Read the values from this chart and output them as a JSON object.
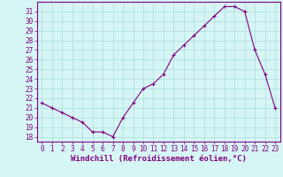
{
  "x": [
    0,
    1,
    2,
    3,
    4,
    5,
    6,
    7,
    8,
    9,
    10,
    11,
    12,
    13,
    14,
    15,
    16,
    17,
    18,
    19,
    20,
    21,
    22,
    23
  ],
  "y": [
    21.5,
    21.0,
    20.5,
    20.0,
    19.5,
    18.5,
    18.5,
    18.0,
    20.0,
    21.5,
    23.0,
    23.5,
    24.5,
    26.5,
    27.5,
    28.5,
    29.5,
    30.5,
    31.5,
    31.5,
    31.0,
    27.0,
    24.5,
    21.0
  ],
  "line_color": "#800080",
  "marker": "+",
  "bg_color": "#d6f5f5",
  "grid_color": "#aadddd",
  "xlabel": "Windchill (Refroidissement éolien,°C)",
  "xlabel_color": "#800080",
  "ylabel_ticks": [
    18,
    19,
    20,
    21,
    22,
    23,
    24,
    25,
    26,
    27,
    28,
    29,
    30,
    31
  ],
  "ylim": [
    17.5,
    32.0
  ],
  "xlim": [
    -0.5,
    23.5
  ],
  "xticks": [
    0,
    1,
    2,
    3,
    4,
    5,
    6,
    7,
    8,
    9,
    10,
    11,
    12,
    13,
    14,
    15,
    16,
    17,
    18,
    19,
    20,
    21,
    22,
    23
  ],
  "tick_color": "#800080",
  "tick_fontsize": 5.5,
  "xlabel_fontsize": 6.5,
  "axis_line_color": "#800080",
  "spine_color": "#800080"
}
